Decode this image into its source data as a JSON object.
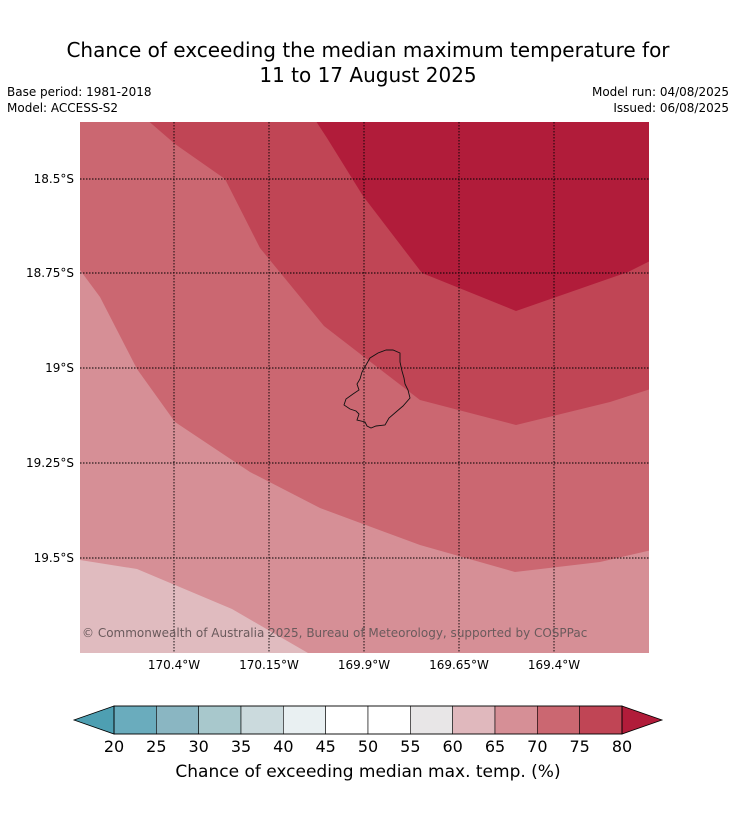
{
  "title_line1": "Chance of exceeding the median maximum temperature for",
  "title_line2": "11 to 17 August 2025",
  "base_period": "Base period: 1981-2018",
  "model": "Model: ACCESS-S2",
  "model_run": "Model run: 04/08/2025",
  "issued": "Issued: 06/08/2025",
  "copyright": "© Commonwealth of Australia 2025, Bureau of Meteorology, supported by COSPPac",
  "lat_labels": [
    "18.5°S",
    "18.75°S",
    "19°S",
    "19.25°S",
    "19.5°S"
  ],
  "lon_labels": [
    "170.4°W",
    "170.15°W",
    "169.9°W",
    "169.65°W",
    "169.4°W"
  ],
  "colorbar": {
    "ticks": [
      "20",
      "25",
      "30",
      "35",
      "40",
      "45",
      "50",
      "55",
      "60",
      "65",
      "70",
      "75",
      "80"
    ],
    "label": "Chance of exceeding median max. temp. (%)",
    "colors": [
      "#6aacbd",
      "#8ab6c2",
      "#a8c8cc",
      "#cbdadd",
      "#e9f0f2",
      "#ffffff",
      "#ffffff",
      "#e8e6e7",
      "#e0b8bd",
      "#d68f96",
      "#cb6771",
      "#c04555"
    ],
    "under_color": "#4e9fb2",
    "over_color": "#b11c3a"
  },
  "map_colors": {
    "band_60_65": "#e0bbbf",
    "band_65_70": "#d68f96",
    "band_70_75": "#cb6771",
    "band_75_80": "#c04555",
    "band_80_plus": "#b11c3a"
  }
}
